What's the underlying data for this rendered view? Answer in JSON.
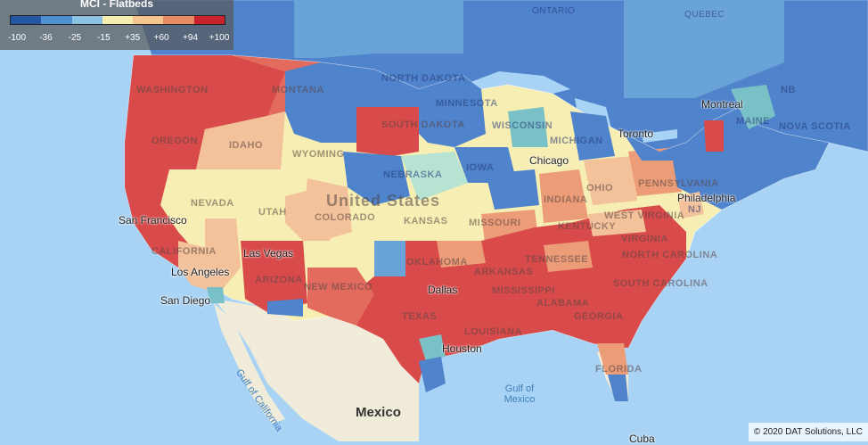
{
  "legend": {
    "title": "MCI - Flatbeds",
    "colors": [
      "#2456a4",
      "#4e91d2",
      "#8dc3e2",
      "#f4efb0",
      "#f5c58f",
      "#e88a62",
      "#c9222d"
    ],
    "ticks": [
      "-100",
      "-36",
      "-25",
      "-15",
      "+35",
      "+60",
      "+94",
      "+100"
    ]
  },
  "region_colors": {
    "strong_red": "#d94a4a",
    "red": "#e36b5e",
    "orange": "#ec9d78",
    "light_orange": "#f3c19a",
    "yellow": "#f6eeb2",
    "light_teal": "#b7e3d2",
    "teal": "#79c1c7",
    "light_blue": "#6aa3d8",
    "blue": "#4f83cc",
    "dark_blue": "#3a6fc0",
    "land": "#f0ecd9",
    "water": "#a9d3f5"
  },
  "labels": {
    "country": "United States",
    "mexico": "Mexico",
    "cuba": "Cuba",
    "states": [
      "WASHINGTON",
      "MONTANA",
      "NORTH DAKOTA",
      "SOUTH DAKOTA",
      "OREGON",
      "IDAHO",
      "WYOMING",
      "NEBRASKA",
      "NEVADA",
      "UTAH",
      "COLORADO",
      "KANSAS",
      "MISSOURI",
      "CALIFORNIA",
      "ARIZONA",
      "NEW MEXICO",
      "OKLAHOMA",
      "TEXAS",
      "LOUISIANA",
      "MISSISSIPPI",
      "ALABAMA",
      "GEORGIA",
      "FLORIDA",
      "TENNESSEE",
      "ARKANSAS",
      "VIRGINIA",
      "WEST VIRGINIA",
      "NORTH CAROLINA",
      "SOUTH CAROLINA",
      "KENTUCKY",
      "INDIANA",
      "OHIO",
      "PENNSYLVANIA",
      "IOWA",
      "WISCONSIN",
      "MICHIGAN",
      "MINNESOTA",
      "MAINE",
      "NJ",
      "NB",
      "NOVA SCOTIA"
    ],
    "provinces": [
      "ONTARIO",
      "QUEBEC"
    ],
    "cities": [
      "San Francisco",
      "Las Vegas",
      "Los Angeles",
      "San Diego",
      "Dallas",
      "Houston",
      "Chicago",
      "Toronto",
      "Montreal",
      "Philadelphia"
    ],
    "water": [
      "Gulf of California",
      "Gulf of Mexico"
    ]
  },
  "copyright": "© 2020 DAT Solutions, LLC"
}
